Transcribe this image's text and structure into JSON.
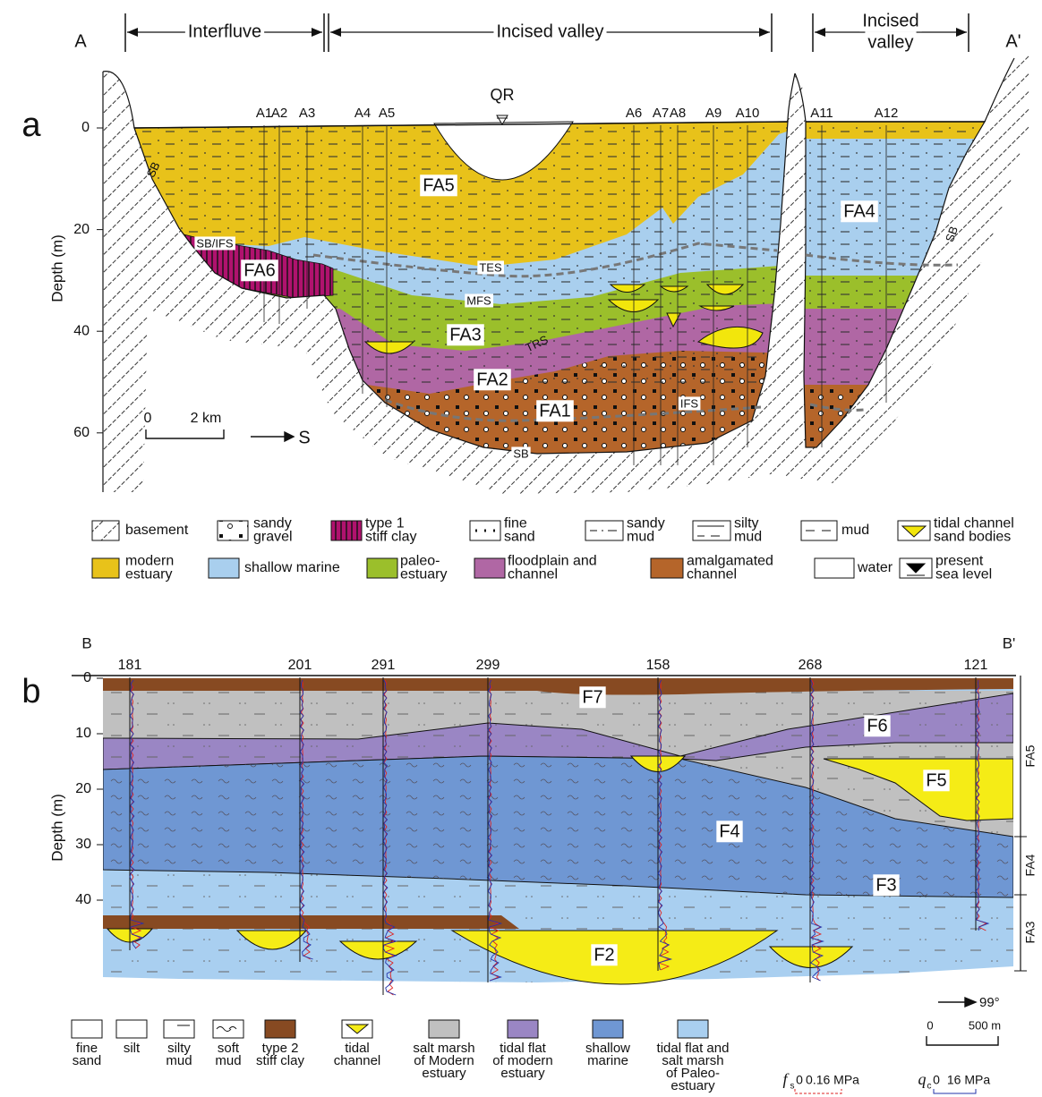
{
  "panel_a": {
    "label": "a",
    "start": "A",
    "end": "A'",
    "zones": [
      {
        "lines": [
          "Interfluve"
        ]
      },
      {
        "lines": [
          "Incised valley"
        ]
      },
      {
        "lines": [
          "Incised",
          "valley"
        ]
      }
    ],
    "y_axis": {
      "title": "Depth (m)",
      "ticks": [
        0,
        20,
        40,
        60
      ]
    },
    "wells": [
      "A1",
      "A2",
      "A3",
      "A4",
      "A5",
      "A6",
      "A7",
      "A8",
      "A9",
      "A10",
      "A11",
      "A12"
    ],
    "sea_level": "QR",
    "units": [
      "FA5",
      "FA4",
      "FA6",
      "FA3",
      "FA2",
      "FA1"
    ],
    "surfaces": [
      "SB",
      "SB/IFS",
      "TES",
      "MFS",
      "TRS",
      "IFS",
      "SB",
      "SB"
    ],
    "scale": [
      "0",
      "2 km"
    ],
    "direction": "S",
    "legend": [
      {
        "lines": [
          "basement"
        ]
      },
      {
        "lines": [
          "sandy",
          "gravel"
        ]
      },
      {
        "lines": [
          "type 1",
          "stiff clay"
        ]
      },
      {
        "lines": [
          "fine",
          "sand"
        ]
      },
      {
        "lines": [
          "sandy",
          "mud"
        ]
      },
      {
        "lines": [
          "silty",
          "mud"
        ]
      },
      {
        "lines": [
          "mud"
        ]
      },
      {
        "lines": [
          "tidal channel",
          "sand bodies"
        ]
      },
      {
        "lines": [
          "modern",
          "estuary"
        ]
      },
      {
        "lines": [
          "shallow marine"
        ]
      },
      {
        "lines": [
          "paleo-",
          "estuary"
        ]
      },
      {
        "lines": [
          "floodplain and",
          "channel"
        ]
      },
      {
        "lines": [
          "amalgamated",
          "channel"
        ]
      },
      {
        "lines": [
          "water"
        ]
      },
      {
        "lines": [
          "present",
          "sea level"
        ]
      }
    ]
  },
  "panel_b": {
    "label": "b",
    "start": "B",
    "end": "B'",
    "y_axis": {
      "title": "Depth (m)",
      "ticks": [
        0,
        10,
        20,
        30,
        40
      ]
    },
    "wells": [
      "181",
      "201",
      "291",
      "299",
      "158",
      "268",
      "121"
    ],
    "facies": [
      "F7",
      "F6",
      "F5",
      "F4",
      "F3",
      "F2"
    ],
    "units": [
      "FA5",
      "FA4",
      "FA3"
    ],
    "direction": "99°",
    "scale": [
      "0",
      "500 m"
    ],
    "logs": [
      {
        "symbol": "f",
        "sub": "s",
        "min": "0",
        "max": "0.16 MPa"
      },
      {
        "symbol": "q",
        "sub": "c",
        "min": "0",
        "max": "16 MPa"
      }
    ],
    "legend": [
      {
        "lines": [
          "fine",
          "sand"
        ]
      },
      {
        "lines": [
          "silt"
        ]
      },
      {
        "lines": [
          "silty",
          "mud"
        ]
      },
      {
        "lines": [
          "soft",
          "mud"
        ]
      },
      {
        "lines": [
          "type  2",
          "stiff  clay"
        ]
      },
      {
        "lines": [
          "tidal",
          "channel"
        ]
      },
      {
        "lines": [
          "salt marsh",
          "of Modern",
          "estuary"
        ]
      },
      {
        "lines": [
          "tidal flat",
          "of modern",
          "estuary"
        ]
      },
      {
        "lines": [
          "shallow",
          "marine"
        ]
      },
      {
        "lines": [
          "tidal flat and",
          "salt marsh",
          "of Paleo-",
          "estuary"
        ]
      }
    ]
  }
}
